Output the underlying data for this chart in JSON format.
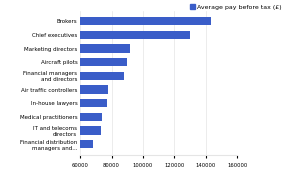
{
  "categories": [
    "Brokers",
    "Chief executives",
    "Marketing directors",
    "Aircraft pilots",
    "Financial managers\nand directors",
    "Air traffic controllers",
    "In-house lawyers",
    "Medical practitioners",
    "IT and telecoms\ndirectors",
    "Financial distribution\nmanagers and..."
  ],
  "values": [
    143000,
    130000,
    92000,
    90000,
    88000,
    78000,
    77000,
    74000,
    73000,
    68000
  ],
  "bar_color": "#3A5DC8",
  "legend_label": "Average pay before tax (£)",
  "xlim": [
    60000,
    160000
  ],
  "xticks": [
    60000,
    80000,
    100000,
    120000,
    140000,
    160000
  ],
  "xtick_labels": [
    "60000",
    "80000",
    "100000",
    "120000",
    "140000",
    "160000"
  ],
  "background_color": "#ffffff",
  "grid_color": "#e5e5e5",
  "tick_fontsize": 3.8,
  "label_fontsize": 4.0,
  "legend_fontsize": 4.5
}
